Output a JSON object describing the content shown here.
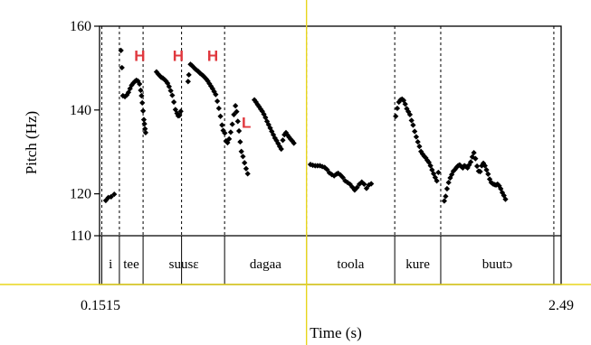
{
  "chart_data": {
    "type": "scatter",
    "title": "",
    "xlabel": "Time (s)",
    "ylabel": "Pitch (Hz)",
    "x_tick_labels": [
      "0.1515",
      "2.49"
    ],
    "xlim": [
      0.1515,
      2.49
    ],
    "ylim": [
      110,
      160
    ],
    "y_ticks": [
      110,
      120,
      140,
      160
    ],
    "y_tick_labels": [
      "110",
      "120",
      "140",
      "160"
    ],
    "cursor_time": 1.2,
    "boundaries": [
      0.163,
      0.252,
      0.372,
      0.567,
      0.785,
      1.2,
      1.647,
      1.88,
      2.453
    ],
    "segments": [
      {
        "label": "i",
        "start": 0.163,
        "end": 0.252
      },
      {
        "label": "tee",
        "start": 0.252,
        "end": 0.372
      },
      {
        "label": "suusɛ",
        "start": 0.372,
        "end": 0.785
      },
      {
        "label": "dagaa",
        "start": 0.785,
        "end": 1.2
      },
      {
        "label": "toola",
        "start": 1.2,
        "end": 1.647
      },
      {
        "label": "kure",
        "start": 1.647,
        "end": 1.88
      },
      {
        "label": "buutɔ",
        "start": 1.88,
        "end": 2.453
      }
    ],
    "tone_marks": [
      {
        "label": "H",
        "time": 0.355,
        "pitch": 153
      },
      {
        "label": "H",
        "time": 0.55,
        "pitch": 153
      },
      {
        "label": "H",
        "time": 0.725,
        "pitch": 153
      },
      {
        "label": "L",
        "time": 0.895,
        "pitch": 137
      }
    ],
    "series": [
      {
        "points": [
          [
            0.183,
            118.4
          ],
          [
            0.196,
            119.1
          ],
          [
            0.21,
            119.3
          ],
          [
            0.226,
            119.9
          ],
          [
            0.26,
            154.2
          ],
          [
            0.265,
            150.1
          ],
          [
            0.27,
            143.4
          ],
          [
            0.28,
            143.2
          ],
          [
            0.29,
            143.6
          ],
          [
            0.298,
            144.2
          ],
          [
            0.306,
            145.1
          ],
          [
            0.314,
            145.9
          ],
          [
            0.322,
            146.4
          ],
          [
            0.33,
            146.8
          ],
          [
            0.338,
            147.1
          ],
          [
            0.346,
            146.9
          ],
          [
            0.354,
            146.2
          ],
          [
            0.36,
            144.7
          ],
          [
            0.364,
            143.4
          ],
          [
            0.368,
            141.7
          ],
          [
            0.372,
            139.8
          ],
          [
            0.376,
            137.7
          ],
          [
            0.379,
            136.7
          ],
          [
            0.382,
            135.5
          ],
          [
            0.385,
            134.6
          ],
          [
            0.44,
            149.1
          ],
          [
            0.448,
            148.6
          ],
          [
            0.456,
            148.2
          ],
          [
            0.464,
            147.8
          ],
          [
            0.472,
            147.6
          ],
          [
            0.48,
            147.3
          ],
          [
            0.488,
            146.9
          ],
          [
            0.496,
            146.4
          ],
          [
            0.504,
            145.6
          ],
          [
            0.512,
            144.6
          ],
          [
            0.52,
            143.5
          ],
          [
            0.528,
            141.9
          ],
          [
            0.536,
            140.1
          ],
          [
            0.544,
            139.2
          ],
          [
            0.55,
            138.6
          ],
          [
            0.556,
            138.7
          ],
          [
            0.563,
            139.7
          ],
          [
            0.6,
            146.8
          ],
          [
            0.604,
            148.4
          ],
          [
            0.612,
            150.9
          ],
          [
            0.62,
            150.6
          ],
          [
            0.628,
            150.2
          ],
          [
            0.636,
            149.8
          ],
          [
            0.644,
            149.5
          ],
          [
            0.652,
            149.2
          ],
          [
            0.66,
            148.8
          ],
          [
            0.668,
            148.5
          ],
          [
            0.676,
            148.2
          ],
          [
            0.684,
            147.8
          ],
          [
            0.692,
            147.4
          ],
          [
            0.7,
            146.9
          ],
          [
            0.708,
            146.3
          ],
          [
            0.716,
            145.7
          ],
          [
            0.724,
            145.1
          ],
          [
            0.732,
            144.4
          ],
          [
            0.74,
            143.7
          ],
          [
            0.748,
            142.1
          ],
          [
            0.756,
            140.4
          ],
          [
            0.764,
            138.5
          ],
          [
            0.772,
            136.4
          ],
          [
            0.778,
            135.1
          ],
          [
            0.786,
            134.5
          ],
          [
            0.792,
            132.6
          ],
          [
            0.8,
            132.2
          ],
          [
            0.808,
            133.1
          ],
          [
            0.816,
            134.7
          ],
          [
            0.824,
            136.6
          ],
          [
            0.832,
            138.9
          ],
          [
            0.84,
            141.0
          ],
          [
            0.846,
            139.6
          ],
          [
            0.852,
            137.3
          ],
          [
            0.858,
            135.0
          ],
          [
            0.864,
            132.4
          ],
          [
            0.87,
            130.1
          ],
          [
            0.878,
            128.9
          ],
          [
            0.886,
            127.4
          ],
          [
            0.894,
            126.0
          ],
          [
            0.902,
            124.8
          ],
          [
            0.936,
            142.4
          ],
          [
            0.944,
            141.9
          ],
          [
            0.952,
            141.3
          ],
          [
            0.96,
            140.8
          ],
          [
            0.968,
            140.2
          ],
          [
            0.976,
            139.7
          ],
          [
            0.984,
            139.0
          ],
          [
            0.992,
            138.2
          ],
          [
            1.0,
            137.3
          ],
          [
            1.008,
            136.5
          ],
          [
            1.016,
            135.7
          ],
          [
            1.024,
            134.9
          ],
          [
            1.032,
            134.1
          ],
          [
            1.04,
            133.3
          ],
          [
            1.048,
            132.7
          ],
          [
            1.056,
            132.0
          ],
          [
            1.064,
            131.3
          ],
          [
            1.072,
            130.7
          ],
          [
            1.08,
            132.8
          ],
          [
            1.088,
            134.1
          ],
          [
            1.096,
            134.6
          ],
          [
            1.104,
            134.0
          ],
          [
            1.112,
            133.5
          ],
          [
            1.12,
            133.0
          ],
          [
            1.128,
            132.6
          ],
          [
            1.136,
            132.1
          ],
          [
            1.22,
            127.0
          ],
          [
            1.232,
            126.8
          ],
          [
            1.244,
            126.7
          ],
          [
            1.256,
            126.7
          ],
          [
            1.268,
            126.7
          ],
          [
            1.28,
            126.5
          ],
          [
            1.292,
            126.3
          ],
          [
            1.304,
            125.8
          ],
          [
            1.316,
            125.0
          ],
          [
            1.328,
            124.6
          ],
          [
            1.34,
            124.3
          ],
          [
            1.352,
            124.7
          ],
          [
            1.36,
            124.9
          ],
          [
            1.372,
            124.5
          ],
          [
            1.384,
            123.9
          ],
          [
            1.396,
            123.1
          ],
          [
            1.408,
            122.7
          ],
          [
            1.42,
            122.3
          ],
          [
            1.432,
            121.6
          ],
          [
            1.444,
            120.9
          ],
          [
            1.456,
            121.5
          ],
          [
            1.468,
            122.3
          ],
          [
            1.48,
            122.8
          ],
          [
            1.492,
            122.3
          ],
          [
            1.504,
            121.3
          ],
          [
            1.516,
            122.1
          ],
          [
            1.528,
            122.4
          ],
          [
            1.652,
            138.5
          ],
          [
            1.66,
            140.4
          ],
          [
            1.668,
            141.9
          ],
          [
            1.676,
            142.4
          ],
          [
            1.684,
            142.6
          ],
          [
            1.692,
            142.3
          ],
          [
            1.7,
            141.4
          ],
          [
            1.708,
            140.3
          ],
          [
            1.716,
            139.6
          ],
          [
            1.724,
            138.9
          ],
          [
            1.732,
            137.5
          ],
          [
            1.74,
            136.4
          ],
          [
            1.748,
            134.9
          ],
          [
            1.756,
            133.6
          ],
          [
            1.764,
            132.4
          ],
          [
            1.772,
            131.3
          ],
          [
            1.78,
            130.1
          ],
          [
            1.788,
            129.5
          ],
          [
            1.796,
            129.0
          ],
          [
            1.804,
            128.6
          ],
          [
            1.812,
            128.0
          ],
          [
            1.82,
            127.5
          ],
          [
            1.828,
            126.7
          ],
          [
            1.836,
            125.7
          ],
          [
            1.844,
            124.8
          ],
          [
            1.852,
            123.9
          ],
          [
            1.86,
            123.1
          ],
          [
            1.868,
            125.1
          ],
          [
            1.898,
            118.3
          ],
          [
            1.905,
            119.4
          ],
          [
            1.912,
            121.2
          ],
          [
            1.92,
            122.7
          ],
          [
            1.928,
            123.8
          ],
          [
            1.936,
            124.6
          ],
          [
            1.944,
            125.4
          ],
          [
            1.952,
            125.8
          ],
          [
            1.96,
            126.3
          ],
          [
            1.968,
            126.7
          ],
          [
            1.976,
            126.9
          ],
          [
            1.984,
            126.5
          ],
          [
            1.992,
            126.2
          ],
          [
            2.0,
            126.7
          ],
          [
            2.008,
            126.5
          ],
          [
            2.016,
            126.2
          ],
          [
            2.024,
            126.9
          ],
          [
            2.032,
            127.6
          ],
          [
            2.04,
            128.8
          ],
          [
            2.048,
            129.8
          ],
          [
            2.056,
            128.4
          ],
          [
            2.064,
            126.6
          ],
          [
            2.072,
            125.4
          ],
          [
            2.08,
            125.3
          ],
          [
            2.088,
            126.7
          ],
          [
            2.096,
            127.3
          ],
          [
            2.104,
            126.7
          ],
          [
            2.112,
            125.7
          ],
          [
            2.12,
            124.7
          ],
          [
            2.128,
            123.5
          ],
          [
            2.136,
            122.7
          ],
          [
            2.144,
            122.4
          ],
          [
            2.152,
            122.2
          ],
          [
            2.16,
            122.1
          ],
          [
            2.168,
            122.3
          ],
          [
            2.176,
            121.9
          ],
          [
            2.184,
            121.2
          ],
          [
            2.192,
            120.3
          ],
          [
            2.2,
            119.6
          ],
          [
            2.208,
            118.7
          ]
        ]
      }
    ],
    "grid": false,
    "legend": "none"
  }
}
